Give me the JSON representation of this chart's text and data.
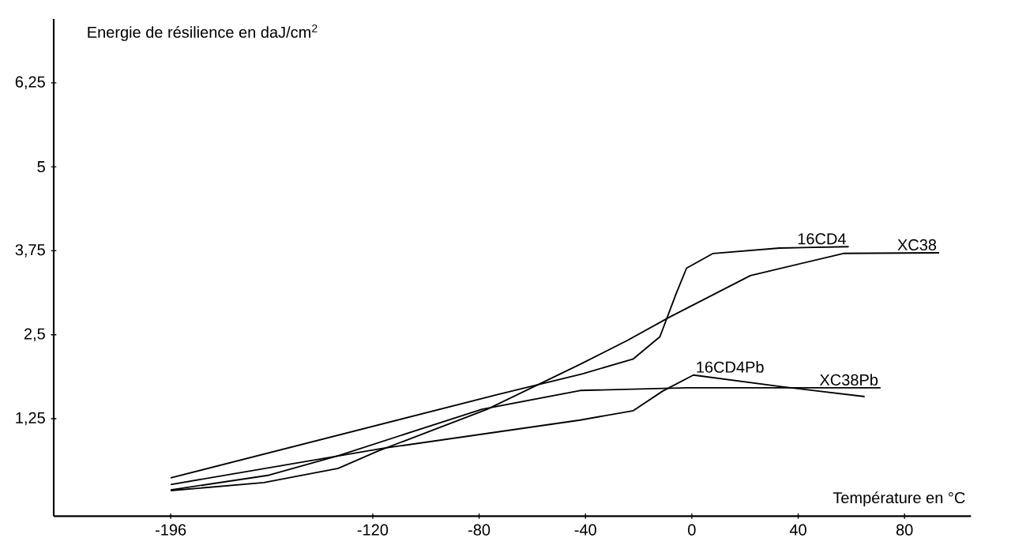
{
  "chart_data": {
    "type": "line",
    "xlabel": "Température en °C",
    "ylabel": "Energie de résilience en daJ/cm$^{2}$",
    "xlim": [
      -240,
      105
    ],
    "ylim": [
      -0.2,
      7.2
    ],
    "xticks": [
      -196,
      -120,
      -80,
      -40,
      0,
      40,
      80
    ],
    "yticks": [
      {
        "value": 1.25,
        "label": "1,25"
      },
      {
        "value": 2.5,
        "label": "2,5"
      },
      {
        "value": 3.75,
        "label": "3,75"
      },
      5,
      {
        "value": 6.25,
        "label": "6,25"
      }
    ],
    "marker": "none",
    "line_style": "solid",
    "series": [
      {
        "name": "16CD4",
        "color": "#000000",
        "x": [
          -196,
          -73,
          -41,
          -22,
          -12,
          -6,
          -2,
          8,
          33,
          59
        ],
        "values": [
          0.37,
          1.61,
          1.92,
          2.14,
          2.47,
          3.1,
          3.49,
          3.71,
          3.79,
          3.81
        ]
      },
      {
        "name": "XC38",
        "color": "#000000",
        "x": [
          -196,
          -161,
          -133,
          -118,
          -77,
          -42,
          -24,
          -8.5,
          22,
          57,
          93
        ],
        "values": [
          0.18,
          0.3,
          0.51,
          0.77,
          1.39,
          2.06,
          2.42,
          2.76,
          3.38,
          3.71,
          3.72
        ]
      },
      {
        "name": "16CD4Pb",
        "color": "#000000",
        "x": [
          -196,
          -116,
          -42,
          -22,
          -11,
          0.6,
          33,
          65
        ],
        "values": [
          0.27,
          0.81,
          1.23,
          1.37,
          1.66,
          1.9,
          1.73,
          1.58
        ]
      },
      {
        "name": "XC38Pb",
        "color": "#000000",
        "x": [
          -196,
          -159,
          -133,
          -79,
          -42,
          -2,
          71
        ],
        "values": [
          0.19,
          0.41,
          0.7,
          1.39,
          1.67,
          1.71,
          1.71
        ]
      }
    ]
  }
}
